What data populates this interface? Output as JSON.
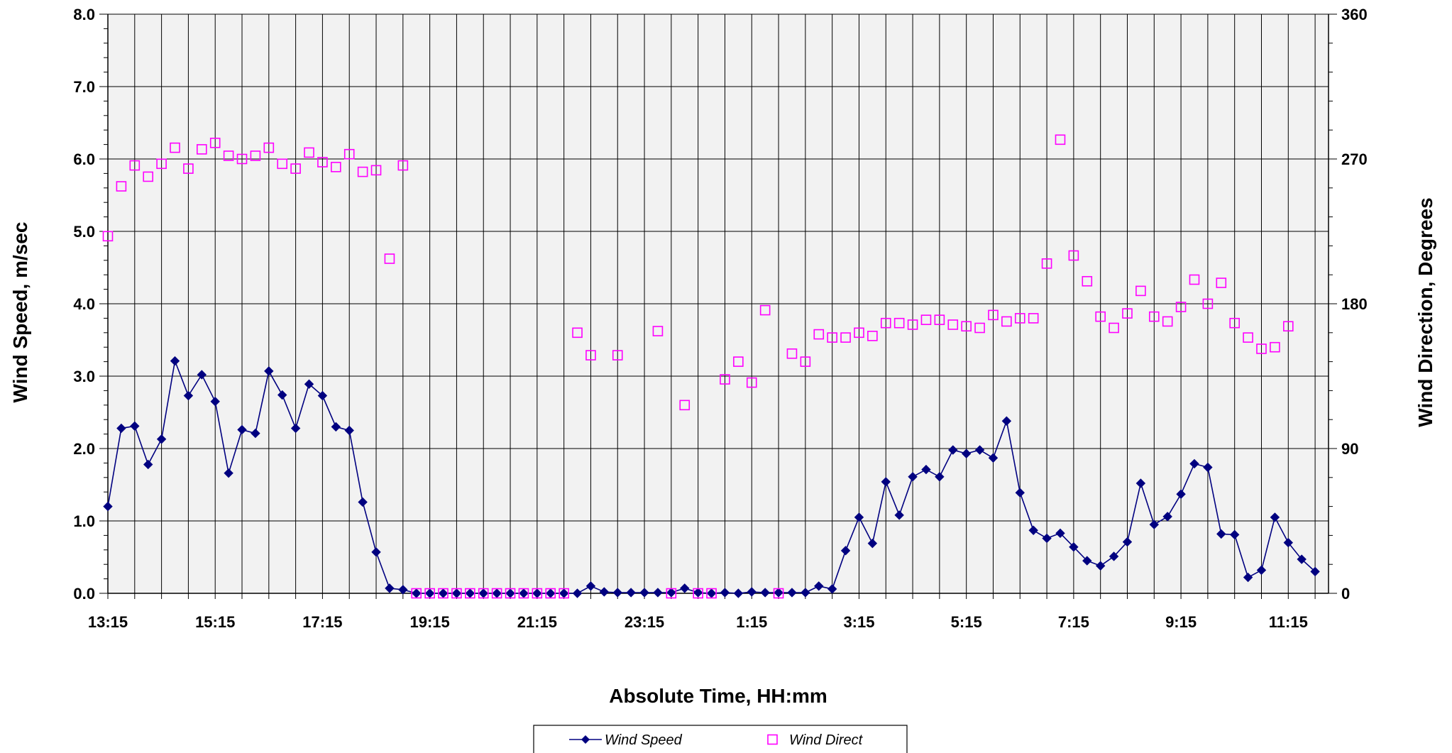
{
  "chart_data": {
    "type": "line",
    "xlabel": "Absolute Time, HH:mm",
    "ylabel": "Wind Speed, m/sec",
    "y2label": "Wind Direction, Degrees",
    "ylim": [
      0,
      8
    ],
    "y2lim": [
      0,
      360
    ],
    "y_ticks": [
      "0.0",
      "1.0",
      "2.0",
      "3.0",
      "4.0",
      "5.0",
      "6.0",
      "7.0",
      "8.0"
    ],
    "y2_ticks": [
      "0",
      "90",
      "180",
      "270",
      "360"
    ],
    "x_interval_minutes": 15,
    "x_start": "13:15",
    "x_tick_labels": [
      "13:15",
      "15:15",
      "17:15",
      "19:15",
      "21:15",
      "23:15",
      "1:15",
      "3:15",
      "5:15",
      "7:15",
      "9:15",
      "11:15"
    ],
    "grid": true,
    "legend_position": "bottom",
    "series": [
      {
        "name": "Wind Speed",
        "axis": "left",
        "color": "#000080",
        "marker": "diamond",
        "values": [
          1.2,
          2.28,
          2.31,
          1.78,
          2.13,
          3.21,
          2.73,
          3.02,
          2.65,
          1.66,
          2.26,
          2.21,
          3.07,
          2.74,
          2.28,
          2.89,
          2.73,
          2.3,
          2.25,
          1.26,
          0.57,
          0.07,
          0.05,
          0.0,
          0.0,
          0.0,
          0.0,
          0.0,
          0.0,
          0.0,
          0.0,
          0.0,
          0.0,
          0.0,
          0.0,
          0.0,
          0.1,
          0.02,
          0.01,
          0.01,
          0.01,
          0.01,
          0.01,
          0.07,
          0.01,
          0.0,
          0.01,
          0.0,
          0.02,
          0.01,
          0.01,
          0.01,
          0.01,
          0.1,
          0.06,
          0.59,
          1.05,
          0.69,
          1.54,
          1.08,
          1.61,
          1.71,
          1.61,
          1.98,
          1.93,
          1.98,
          1.87,
          2.38,
          1.39,
          0.87,
          0.76,
          0.83,
          0.64,
          0.45,
          0.38,
          0.51,
          0.71,
          1.52,
          0.95,
          1.06,
          1.37,
          1.79,
          1.74,
          0.82,
          0.81,
          0.22,
          0.32,
          1.05,
          0.7,
          0.47,
          0.3
        ]
      },
      {
        "name": "Wind Direct",
        "axis": "right",
        "color": "#ff00ff",
        "marker": "square",
        "values": [
          222,
          253,
          266,
          259,
          267,
          277,
          264,
          276,
          280,
          272,
          270,
          272,
          277,
          267,
          264,
          274,
          268,
          265,
          273,
          262,
          263,
          208,
          266,
          0,
          0,
          0,
          0,
          0,
          0,
          0,
          0,
          0,
          0,
          0,
          0,
          162,
          148,
          null,
          148,
          null,
          null,
          163,
          0,
          117,
          0,
          0,
          133,
          144,
          131,
          176,
          0,
          149,
          144,
          161,
          159,
          159,
          162,
          160,
          168,
          168,
          167,
          170,
          170,
          167,
          166,
          165,
          173,
          169,
          171,
          171,
          205,
          282,
          210,
          194,
          172,
          165,
          174,
          188,
          172,
          169,
          178,
          195,
          180,
          193,
          168,
          159,
          152,
          153,
          166
        ]
      }
    ]
  }
}
